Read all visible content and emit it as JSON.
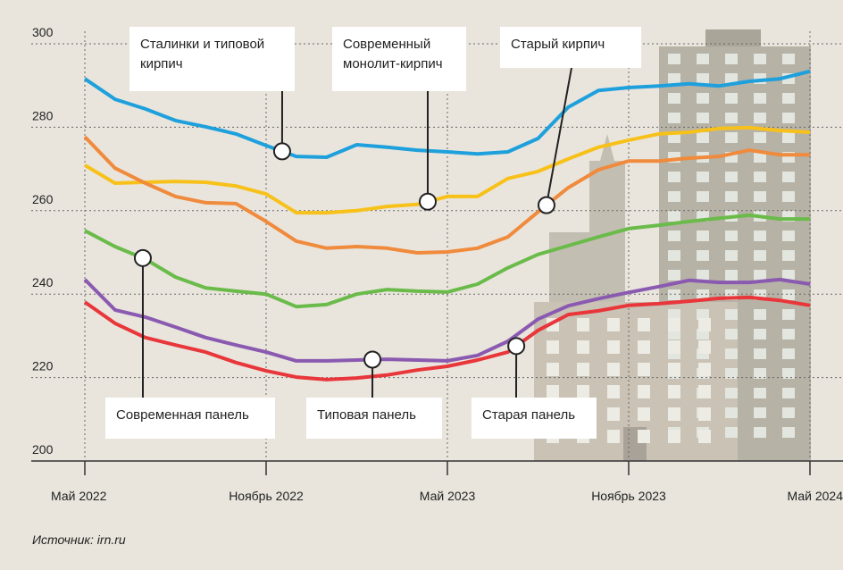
{
  "chart_data": {
    "type": "line",
    "categories": [
      "Май 2022",
      null,
      null,
      null,
      null,
      null,
      "Ноябрь 2022",
      null,
      null,
      null,
      null,
      null,
      "Май 2023",
      null,
      null,
      null,
      null,
      null,
      "Ноябрь 2023",
      null,
      null,
      null,
      null,
      null,
      "Май 2024"
    ],
    "series": [
      {
        "name": "Сталинки и типовой кирпич",
        "color": "#1ea0dc",
        "values": [
          291.6,
          286.7,
          284.4,
          281.6,
          280.1,
          278.4,
          275.6,
          273.0,
          272.8,
          275.8,
          275.2,
          274.5,
          274.1,
          273.6,
          274.1,
          277.3,
          284.8,
          288.8,
          289.5,
          289.9,
          290.4,
          289.9,
          291.0,
          291.6,
          293.4
        ]
      },
      {
        "name": "Современный монолит-кирпич",
        "color": "#f7c11a",
        "values": [
          270.9,
          266.6,
          266.8,
          267.0,
          266.8,
          265.9,
          264.0,
          259.5,
          259.5,
          260.0,
          261.0,
          261.5,
          263.4,
          263.4,
          267.7,
          269.4,
          272.4,
          275.2,
          276.9,
          278.4,
          278.8,
          279.7,
          279.9,
          279.2,
          278.8
        ]
      },
      {
        "name": "Старый кирпич",
        "color": "#f08a3c",
        "values": [
          277.7,
          270.2,
          266.6,
          263.4,
          261.9,
          261.7,
          257.4,
          252.7,
          251.0,
          251.4,
          251.0,
          249.9,
          250.1,
          251.0,
          253.7,
          259.7,
          265.5,
          269.8,
          271.9,
          271.9,
          272.6,
          273.0,
          274.5,
          273.4,
          273.4
        ]
      },
      {
        "name": "Современная панель",
        "color": "#6abb4a",
        "values": [
          255.2,
          251.4,
          248.4,
          244.1,
          241.5,
          240.7,
          240.0,
          237.0,
          237.5,
          240.0,
          241.1,
          240.7,
          240.5,
          242.4,
          246.3,
          249.5,
          251.6,
          253.7,
          255.7,
          256.5,
          257.4,
          258.2,
          258.9,
          258.0,
          258.0
        ]
      },
      {
        "name": "Типовая панель",
        "color": "#8a5ab0",
        "values": [
          243.5,
          236.2,
          234.5,
          232.1,
          229.6,
          227.8,
          226.1,
          224.0,
          224.0,
          224.2,
          224.4,
          224.2,
          224.0,
          225.3,
          228.7,
          234.0,
          237.2,
          238.9,
          240.4,
          241.8,
          243.3,
          242.8,
          242.8,
          243.5,
          242.4
        ]
      },
      {
        "name": "Старая панель",
        "color": "#e8363a",
        "values": [
          238.1,
          233.0,
          229.6,
          227.8,
          226.1,
          223.6,
          221.6,
          220.1,
          219.5,
          219.9,
          220.6,
          221.8,
          222.7,
          224.2,
          226.1,
          231.3,
          235.1,
          236.0,
          237.3,
          237.7,
          238.3,
          239.0,
          239.2,
          238.5,
          237.3
        ]
      }
    ],
    "ylim": [
      200,
      300
    ],
    "yticks": [
      200,
      220,
      240,
      260,
      280,
      300
    ],
    "grid": true,
    "source": "Источник: irn.ru"
  }
}
